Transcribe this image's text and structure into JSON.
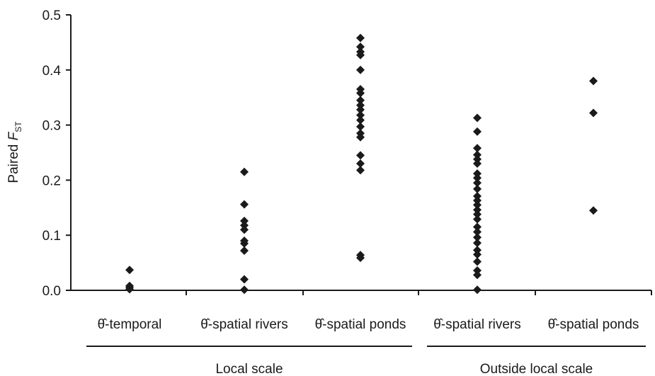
{
  "chart_data": {
    "type": "scatter",
    "title": "",
    "xlabel": "",
    "ylabel": {
      "prefix": "Paired ",
      "symbol": "F",
      "subscript": "ST"
    },
    "ylim": [
      0,
      0.5
    ],
    "yticks": [
      "0.0",
      "0.1",
      "0.2",
      "0.3",
      "0.4",
      "0.5"
    ],
    "grid": false,
    "categories": [
      "θ̂-temporal",
      "θ̂-spatial rivers",
      "θ̂-spatial ponds",
      "θ̂-spatial rivers",
      "θ̂-spatial ponds"
    ],
    "groups": [
      {
        "label": "Local scale",
        "categories": [
          0,
          1,
          2
        ]
      },
      {
        "label": "Outside local scale",
        "categories": [
          3,
          4
        ]
      }
    ],
    "series": [
      {
        "category": 0,
        "values": [
          0.037,
          0.008,
          0.005,
          0.002
        ]
      },
      {
        "category": 1,
        "values": [
          0.215,
          0.156,
          0.126,
          0.118,
          0.11,
          0.09,
          0.085,
          0.072,
          0.02,
          0.001
        ]
      },
      {
        "category": 2,
        "values": [
          0.458,
          0.442,
          0.433,
          0.427,
          0.4,
          0.365,
          0.358,
          0.345,
          0.336,
          0.328,
          0.318,
          0.309,
          0.297,
          0.285,
          0.278,
          0.245,
          0.23,
          0.218,
          0.064,
          0.059
        ]
      },
      {
        "category": 3,
        "values": [
          0.313,
          0.288,
          0.258,
          0.246,
          0.238,
          0.23,
          0.212,
          0.204,
          0.195,
          0.184,
          0.171,
          0.163,
          0.155,
          0.146,
          0.138,
          0.129,
          0.115,
          0.106,
          0.096,
          0.086,
          0.073,
          0.065,
          0.052,
          0.036,
          0.028,
          0.001
        ]
      },
      {
        "category": 4,
        "values": [
          0.38,
          0.322,
          0.145
        ]
      }
    ],
    "colors": {
      "marker": "#1a1a1a",
      "axis": "#1a1a1a"
    }
  }
}
